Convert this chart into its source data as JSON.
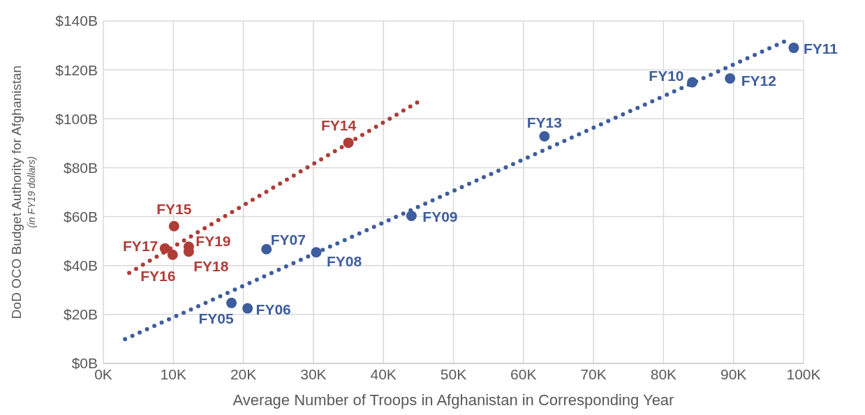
{
  "chart_data": {
    "type": "scatter",
    "xlabel": "Average Number of Troops in Afghanistan in Corresponding Year",
    "ylabel": "DoD OCO Budget Authority for Afghanistan\n(in FY19 dollars)",
    "xlim": [
      0,
      100
    ],
    "xticks": [
      {
        "value": 0,
        "label": "0K"
      },
      {
        "value": 10,
        "label": "10K"
      },
      {
        "value": 20,
        "label": "20K"
      },
      {
        "value": 30,
        "label": "30K"
      },
      {
        "value": 40,
        "label": "40K"
      },
      {
        "value": 50,
        "label": "50K"
      },
      {
        "value": 60,
        "label": "60K"
      },
      {
        "value": 70,
        "label": "70K"
      },
      {
        "value": 80,
        "label": "80K"
      },
      {
        "value": 90,
        "label": "90K"
      },
      {
        "value": 100,
        "label": "100K"
      }
    ],
    "ylim": [
      0,
      140
    ],
    "yticks": [
      {
        "value": 0,
        "label": "$0B"
      },
      {
        "value": 20,
        "label": "$20B"
      },
      {
        "value": 40,
        "label": "$40B"
      },
      {
        "value": 60,
        "label": "$60B"
      },
      {
        "value": 80,
        "label": "$80B"
      },
      {
        "value": 100,
        "label": "$100B"
      },
      {
        "value": 120,
        "label": "$120B"
      },
      {
        "value": 140,
        "label": "$140B"
      }
    ],
    "grid": true,
    "legend": false,
    "marker": "circle",
    "series": [
      {
        "color": "#3e5d9e",
        "x": [
          18.3,
          20.6,
          23.3,
          30.4,
          44.0,
          84.1,
          98.6,
          89.5,
          63.0
        ],
        "values": [
          24.7,
          22.5,
          46.7,
          45.4,
          60.3,
          114.9,
          129.0,
          116.5,
          92.8
        ]
      },
      {
        "color": "#b03c38",
        "x": [
          35.0,
          10.1,
          9.9,
          8.8,
          12.2,
          12.2
        ],
        "values": [
          90.2,
          56.1,
          44.4,
          47.0,
          45.7,
          47.7
        ]
      },
      {
        "type": "line",
        "color": "#3e5d9e",
        "marker": "none",
        "line_style": "dotted",
        "x": [
          3.1,
          97.3
        ],
        "values": [
          9.9,
          131.6
        ]
      },
      {
        "type": "line",
        "color": "#b03c38",
        "marker": "none",
        "line_style": "dotted",
        "x": [
          3.7,
          44.9
        ],
        "values": [
          37.0,
          106.8
        ]
      }
    ],
    "annotations": [
      {
        "text": "FY05",
        "x": 18.3,
        "y": 24.7
      },
      {
        "text": "FY06",
        "x": 20.6,
        "y": 22.5
      },
      {
        "text": "FY07",
        "x": 23.3,
        "y": 46.7
      },
      {
        "text": "FY08",
        "x": 30.4,
        "y": 45.4
      },
      {
        "text": "FY09",
        "x": 44.0,
        "y": 60.3
      },
      {
        "text": "FY10",
        "x": 84.1,
        "y": 114.9
      },
      {
        "text": "FY11",
        "x": 98.6,
        "y": 129.0
      },
      {
        "text": "FY12",
        "x": 89.5,
        "y": 116.5
      },
      {
        "text": "FY13",
        "x": 63.0,
        "y": 92.8
      },
      {
        "text": "FY14",
        "x": 35.0,
        "y": 90.2
      },
      {
        "text": "FY15",
        "x": 10.1,
        "y": 56.1
      },
      {
        "text": "FY16",
        "x": 9.9,
        "y": 44.4
      },
      {
        "text": "FY17",
        "x": 8.8,
        "y": 47.0
      },
      {
        "text": "FY18",
        "x": 12.2,
        "y": 45.7
      },
      {
        "text": "FY19",
        "x": 12.2,
        "y": 47.7
      }
    ]
  }
}
